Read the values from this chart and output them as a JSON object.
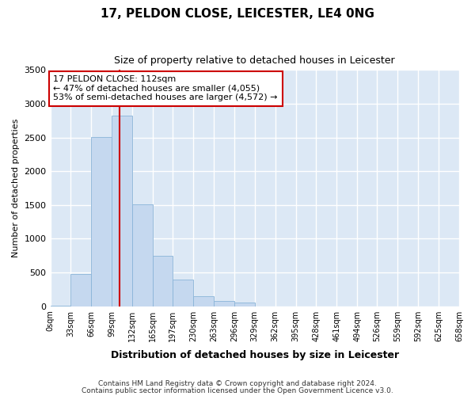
{
  "title": "17, PELDON CLOSE, LEICESTER, LE4 0NG",
  "subtitle": "Size of property relative to detached houses in Leicester",
  "xlabel": "Distribution of detached houses by size in Leicester",
  "ylabel": "Number of detached properties",
  "annotation_line1": "17 PELDON CLOSE: 112sqm",
  "annotation_line2": "← 47% of detached houses are smaller (4,055)",
  "annotation_line3": "53% of semi-detached houses are larger (4,572) →",
  "bin_edges": [
    0,
    33,
    66,
    99,
    132,
    165,
    197,
    230,
    263,
    296,
    329,
    362,
    395,
    428,
    461,
    494,
    526,
    559,
    592,
    625,
    658
  ],
  "bar_heights": [
    5,
    480,
    2510,
    2820,
    1510,
    750,
    390,
    150,
    80,
    50,
    0,
    0,
    0,
    0,
    0,
    0,
    0,
    0,
    0,
    0
  ],
  "bar_color": "#c5d8ef",
  "bar_edge_color": "#8ab4d8",
  "vline_color": "#cc0000",
  "vline_x": 112,
  "ylim": [
    0,
    3500
  ],
  "yticks": [
    0,
    500,
    1000,
    1500,
    2000,
    2500,
    3000,
    3500
  ],
  "fig_bg_color": "#ffffff",
  "ax_bg_color": "#dce8f5",
  "grid_color": "#ffffff",
  "footer_line1": "Contains HM Land Registry data © Crown copyright and database right 2024.",
  "footer_line2": "Contains public sector information licensed under the Open Government Licence v3.0."
}
